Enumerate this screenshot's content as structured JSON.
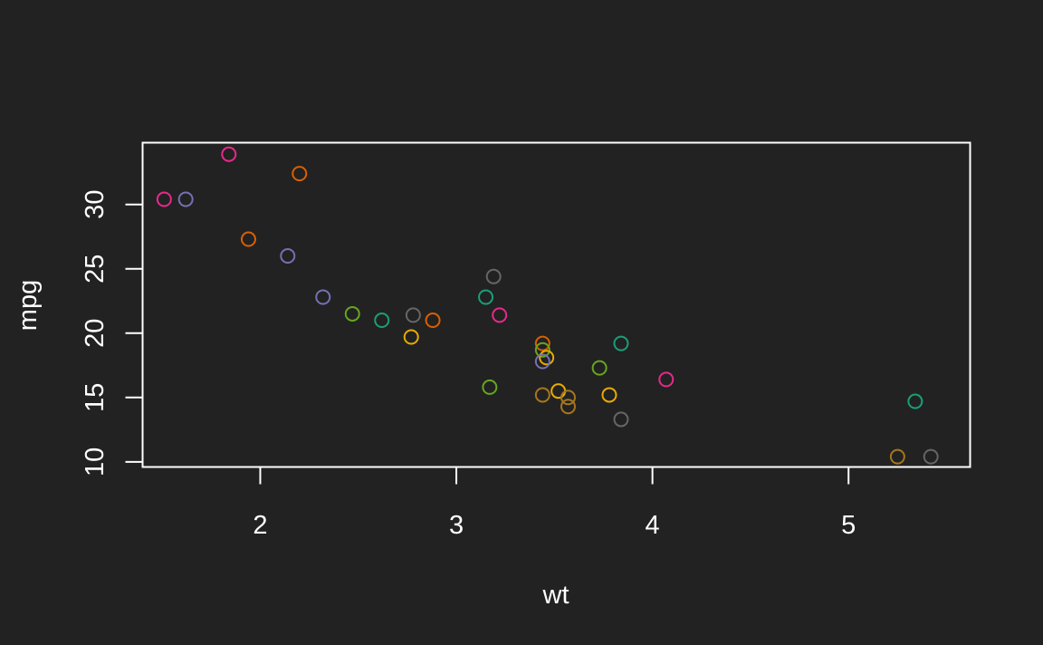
{
  "chart_data": {
    "type": "scatter",
    "title": "",
    "xlabel": "wt",
    "ylabel": "mpg",
    "xlim": [
      1.4,
      5.62
    ],
    "ylim": [
      9.6,
      34.8
    ],
    "xticks": [
      2,
      3,
      4,
      5
    ],
    "yticks": [
      10,
      15,
      20,
      25,
      30
    ],
    "grid": false,
    "legend": "none",
    "colors": {
      "background": "#222222",
      "axis": "#ffffff",
      "text": "#ffffff"
    },
    "points": [
      {
        "x": 1.51,
        "y": 30.4,
        "color": "#E7298A"
      },
      {
        "x": 1.62,
        "y": 30.4,
        "color": "#7570B3"
      },
      {
        "x": 1.84,
        "y": 33.9,
        "color": "#E7298A"
      },
      {
        "x": 1.94,
        "y": 27.3,
        "color": "#D95F02"
      },
      {
        "x": 2.2,
        "y": 32.4,
        "color": "#D95F02"
      },
      {
        "x": 2.14,
        "y": 26.0,
        "color": "#7570B3"
      },
      {
        "x": 2.32,
        "y": 22.8,
        "color": "#7570B3"
      },
      {
        "x": 2.47,
        "y": 21.5,
        "color": "#66A61E"
      },
      {
        "x": 2.62,
        "y": 21.0,
        "color": "#1B9E77"
      },
      {
        "x": 2.78,
        "y": 21.4,
        "color": "#666666"
      },
      {
        "x": 2.77,
        "y": 19.7,
        "color": "#E6AB02"
      },
      {
        "x": 2.88,
        "y": 21.0,
        "color": "#D95F02"
      },
      {
        "x": 3.15,
        "y": 22.8,
        "color": "#1B9E77"
      },
      {
        "x": 3.19,
        "y": 24.4,
        "color": "#666666"
      },
      {
        "x": 3.22,
        "y": 21.4,
        "color": "#E7298A"
      },
      {
        "x": 3.17,
        "y": 15.8,
        "color": "#66A61E"
      },
      {
        "x": 3.44,
        "y": 19.2,
        "color": "#D95F02"
      },
      {
        "x": 3.44,
        "y": 18.7,
        "color": "#66A61E"
      },
      {
        "x": 3.46,
        "y": 18.1,
        "color": "#E6AB02"
      },
      {
        "x": 3.44,
        "y": 17.8,
        "color": "#7570B3"
      },
      {
        "x": 3.44,
        "y": 15.2,
        "color": "#A6761D"
      },
      {
        "x": 3.52,
        "y": 15.5,
        "color": "#E6AB02"
      },
      {
        "x": 3.57,
        "y": 15.0,
        "color": "#A6761D"
      },
      {
        "x": 3.57,
        "y": 14.3,
        "color": "#A6761D"
      },
      {
        "x": 3.73,
        "y": 17.3,
        "color": "#66A61E"
      },
      {
        "x": 3.78,
        "y": 15.2,
        "color": "#E6AB02"
      },
      {
        "x": 3.84,
        "y": 19.2,
        "color": "#1B9E77"
      },
      {
        "x": 3.84,
        "y": 13.3,
        "color": "#666666"
      },
      {
        "x": 4.07,
        "y": 16.4,
        "color": "#E7298A"
      },
      {
        "x": 5.25,
        "y": 10.4,
        "color": "#A6761D"
      },
      {
        "x": 5.42,
        "y": 10.4,
        "color": "#666666"
      },
      {
        "x": 5.34,
        "y": 14.7,
        "color": "#1B9E77"
      }
    ]
  }
}
